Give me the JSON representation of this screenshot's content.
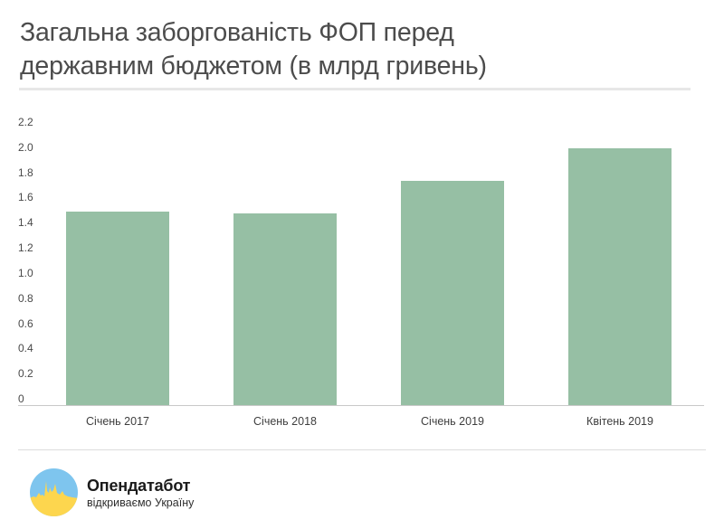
{
  "title": {
    "full": "Загальна заборгованість ФОП перед державним бюджетом (в млрд гривень)",
    "line1": "Загальна заборгованість ФОП перед",
    "line2": "державним бюджетом (в млрд гривень)"
  },
  "chart_data": {
    "type": "bar",
    "title": "Загальна заборгованість ФОП перед державним бюджетом (в млрд гривень)",
    "categories": [
      "Січень 2017",
      "Січень 2018",
      "Січень 2019",
      "Квітень 2019"
    ],
    "values": [
      1.51,
      1.49,
      1.75,
      2.0
    ],
    "xlabel": "",
    "ylabel": "",
    "ylim": [
      0,
      2.2
    ],
    "ytick_step": 0.2,
    "yticks_top_to_bottom": [
      "2.2",
      "2.0",
      "1.8",
      "1.6",
      "1.4",
      "1.2",
      "1.0",
      "0.8",
      "0.6",
      "0.4",
      "0.2",
      "0"
    ],
    "grid": false,
    "legend": false,
    "bar_color": "#96bfa4"
  },
  "footer": {
    "brand": "Опендатабот",
    "tagline": "відкриваємо Україну"
  },
  "colors": {
    "bar": "#96bfa4",
    "title_text": "#4c4c4c",
    "axis_line": "#c9c9c9",
    "tick_text": "#484848",
    "divider": "#e7e7e7",
    "logo_blue": "#7ec5ee",
    "logo_yellow": "#fdd64e"
  }
}
